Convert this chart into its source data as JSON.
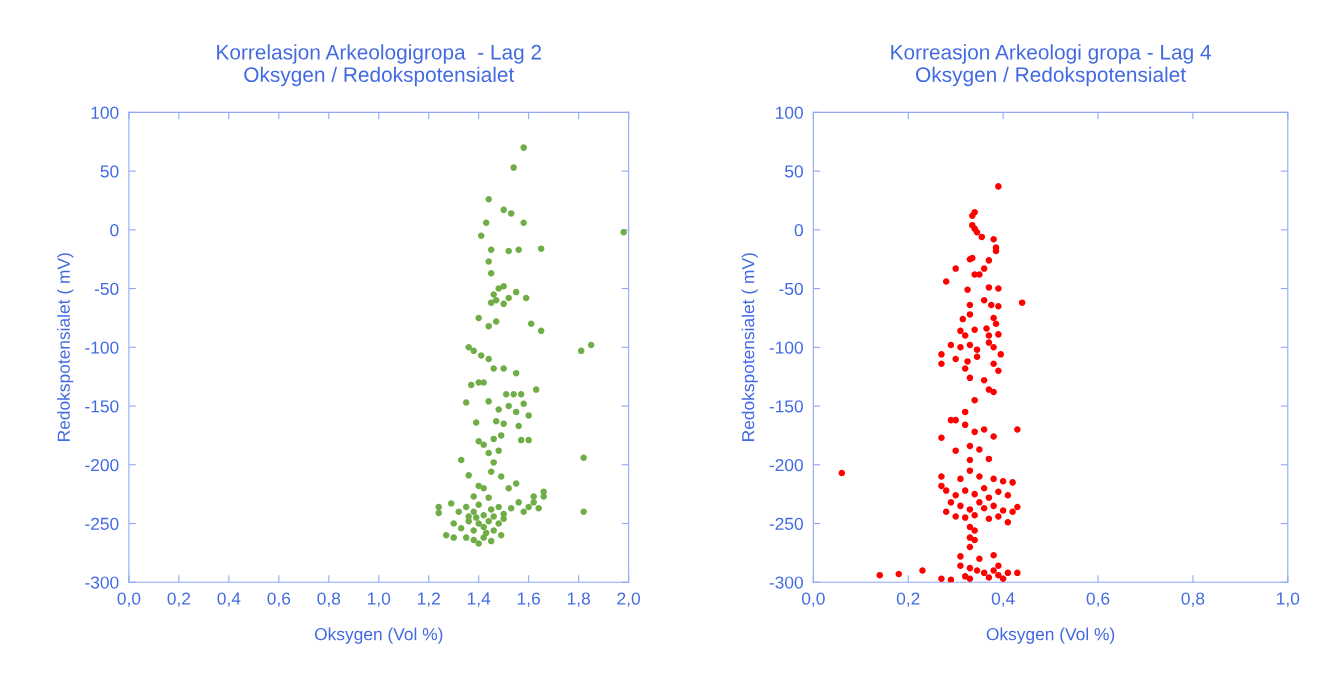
{
  "chart_data": [
    {
      "type": "scatter",
      "title": "Korrelasjon Arkeologigropa  - Lag 2\nOksygen / Redokspotensialet",
      "xlabel": "Oksygen (Vol %)",
      "ylabel": "Redokspotensialet ( mV)",
      "marker": "circle",
      "grid": false,
      "xlim": [
        0,
        2.0
      ],
      "xticks": [
        {
          "value": 0,
          "label": "0,0"
        },
        {
          "value": 0.2,
          "label": "0,2"
        },
        {
          "value": 0.4,
          "label": "0,4"
        },
        {
          "value": 0.6,
          "label": "0,6"
        },
        {
          "value": 0.8,
          "label": "0,8"
        },
        {
          "value": 1.0,
          "label": "1,0"
        },
        {
          "value": 1.2,
          "label": "1,2"
        },
        {
          "value": 1.4,
          "label": "1,4"
        },
        {
          "value": 1.6,
          "label": "1,6"
        },
        {
          "value": 1.8,
          "label": "1,8"
        },
        {
          "value": 2.0,
          "label": "2,0"
        }
      ],
      "ylim": [
        -300,
        100
      ],
      "yticks": [
        -300,
        -250,
        -200,
        -150,
        -100,
        -50,
        0,
        50,
        100
      ],
      "series": [
        {
          "color": "#70ad47",
          "x": [
            1.58,
            1.54,
            1.44,
            1.5,
            1.53,
            1.43,
            1.58,
            1.41,
            1.98,
            1.45,
            1.52,
            1.56,
            1.65,
            1.44,
            1.45,
            1.48,
            1.5,
            1.46,
            1.45,
            1.47,
            1.5,
            1.52,
            1.59,
            1.55,
            1.4,
            1.44,
            1.47,
            1.61,
            1.65,
            1.36,
            1.38,
            1.41,
            1.44,
            1.46,
            1.5,
            1.55,
            1.81,
            1.85,
            1.37,
            1.4,
            1.42,
            1.51,
            1.54,
            1.57,
            1.63,
            1.35,
            1.44,
            1.48,
            1.52,
            1.55,
            1.58,
            1.6,
            1.39,
            1.47,
            1.5,
            1.56,
            1.46,
            1.4,
            1.42,
            1.49,
            1.57,
            1.6,
            1.44,
            1.48,
            1.46,
            1.33,
            1.36,
            1.45,
            1.49,
            1.82,
            1.4,
            1.42,
            1.52,
            1.55,
            1.62,
            1.66,
            1.66,
            1.38,
            1.44,
            1.24,
            1.24,
            1.29,
            1.32,
            1.35,
            1.38,
            1.4,
            1.42,
            1.45,
            1.48,
            1.5,
            1.53,
            1.56,
            1.58,
            1.6,
            1.62,
            1.64,
            1.82,
            1.3,
            1.33,
            1.36,
            1.38,
            1.4,
            1.42,
            1.44,
            1.46,
            1.48,
            1.5,
            1.27,
            1.3,
            1.35,
            1.38,
            1.4,
            1.42,
            1.45,
            1.49,
            1.43,
            1.36,
            1.39,
            1.46
          ],
          "values": [
            70,
            53,
            26,
            17,
            14,
            6,
            6,
            -5,
            -2,
            -17,
            -18,
            -17,
            -16,
            -27,
            -37,
            -50,
            -48,
            -55,
            -62,
            -60,
            -63,
            -58,
            -58,
            -53,
            -75,
            -82,
            -78,
            -80,
            -86,
            -100,
            -103,
            -107,
            -110,
            -118,
            -118,
            -122,
            -103,
            -98,
            -132,
            -130,
            -130,
            -140,
            -140,
            -140,
            -136,
            -147,
            -146,
            -153,
            -150,
            -155,
            -148,
            -158,
            -164,
            -163,
            -165,
            -167,
            -178,
            -180,
            -183,
            -175,
            -179,
            -179,
            -190,
            -188,
            -198,
            -196,
            -209,
            -206,
            -210,
            -194,
            -218,
            -220,
            -220,
            -216,
            -227,
            -223,
            -227,
            -227,
            -228,
            -236,
            -241,
            -233,
            -240,
            -236,
            -240,
            -234,
            -243,
            -238,
            -236,
            -242,
            -237,
            -232,
            -240,
            -236,
            -232,
            -237,
            -240,
            -250,
            -254,
            -248,
            -256,
            -250,
            -253,
            -248,
            -256,
            -250,
            -246,
            -260,
            -262,
            -262,
            -264,
            -267,
            -262,
            -265,
            -260,
            -258,
            -244,
            -245,
            -244
          ]
        }
      ]
    },
    {
      "type": "scatter",
      "title": "Korreasjon Arkeologi gropa - Lag 4\nOksygen / Redokspotensialet",
      "xlabel": "Oksygen (Vol %)",
      "ylabel": "Redokspotensialet ( mV)",
      "marker": "circle",
      "grid": false,
      "xlim": [
        0,
        1.0
      ],
      "xticks": [
        {
          "value": 0,
          "label": "0,0"
        },
        {
          "value": 0.2,
          "label": "0,2"
        },
        {
          "value": 0.4,
          "label": "0,4"
        },
        {
          "value": 0.6,
          "label": "0,6"
        },
        {
          "value": 0.8,
          "label": "0,8"
        },
        {
          "value": 1.0,
          "label": "1,0"
        }
      ],
      "ylim": [
        -300,
        100
      ],
      "yticks": [
        -300,
        -250,
        -200,
        -150,
        -100,
        -50,
        0,
        50,
        100
      ],
      "series": [
        {
          "color": "#ff0000",
          "x": [
            0.39,
            0.34,
            0.335,
            0.335,
            0.34,
            0.345,
            0.355,
            0.38,
            0.385,
            0.385,
            0.33,
            0.335,
            0.37,
            0.36,
            0.3,
            0.28,
            0.34,
            0.35,
            0.325,
            0.37,
            0.39,
            0.44,
            0.33,
            0.36,
            0.375,
            0.39,
            0.315,
            0.33,
            0.38,
            0.385,
            0.31,
            0.32,
            0.34,
            0.365,
            0.37,
            0.39,
            0.29,
            0.31,
            0.33,
            0.345,
            0.37,
            0.38,
            0.395,
            0.27,
            0.27,
            0.3,
            0.325,
            0.345,
            0.38,
            0.39,
            0.32,
            0.33,
            0.36,
            0.37,
            0.38,
            0.34,
            0.32,
            0.29,
            0.3,
            0.32,
            0.27,
            0.34,
            0.38,
            0.36,
            0.43,
            0.3,
            0.33,
            0.35,
            0.33,
            0.37,
            0.06,
            0.27,
            0.27,
            0.31,
            0.33,
            0.35,
            0.38,
            0.4,
            0.42,
            0.28,
            0.3,
            0.32,
            0.34,
            0.36,
            0.37,
            0.39,
            0.41,
            0.29,
            0.31,
            0.33,
            0.35,
            0.36,
            0.38,
            0.4,
            0.42,
            0.28,
            0.3,
            0.32,
            0.34,
            0.37,
            0.39,
            0.41,
            0.43,
            0.33,
            0.34,
            0.33,
            0.34,
            0.33,
            0.31,
            0.35,
            0.38,
            0.39,
            0.31,
            0.33,
            0.345,
            0.36,
            0.38,
            0.39,
            0.41,
            0.43,
            0.14,
            0.18,
            0.23,
            0.27,
            0.29,
            0.33,
            0.37,
            0.4,
            0.32
          ],
          "values": [
            37,
            15,
            12,
            4,
            1,
            -2,
            -6,
            -8,
            -18,
            -15,
            -25,
            -24,
            -26,
            -33,
            -33,
            -44,
            -38,
            -38,
            -51,
            -49,
            -50,
            -62,
            -64,
            -60,
            -64,
            -65,
            -76,
            -72,
            -75,
            -80,
            -86,
            -90,
            -85,
            -84,
            -90,
            -89,
            -98,
            -100,
            -98,
            -102,
            -96,
            -100,
            -106,
            -106,
            -114,
            -110,
            -112,
            -108,
            -114,
            -120,
            -118,
            -126,
            -128,
            -136,
            -138,
            -145,
            -155,
            -162,
            -162,
            -166,
            -177,
            -172,
            -176,
            -170,
            -170,
            -188,
            -184,
            -187,
            -196,
            -195,
            -207,
            -210,
            -218,
            -212,
            -205,
            -210,
            -212,
            -214,
            -215,
            -222,
            -226,
            -222,
            -225,
            -220,
            -228,
            -223,
            -226,
            -232,
            -235,
            -238,
            -232,
            -237,
            -235,
            -239,
            -240,
            -240,
            -244,
            -245,
            -243,
            -246,
            -244,
            -249,
            -236,
            -253,
            -256,
            -262,
            -264,
            -270,
            -278,
            -280,
            -277,
            -286,
            -286,
            -288,
            -290,
            -292,
            -290,
            -294,
            -292,
            -292,
            -294,
            -293,
            -290,
            -297,
            -298,
            -297,
            -296,
            -297,
            -295
          ]
        }
      ]
    }
  ]
}
